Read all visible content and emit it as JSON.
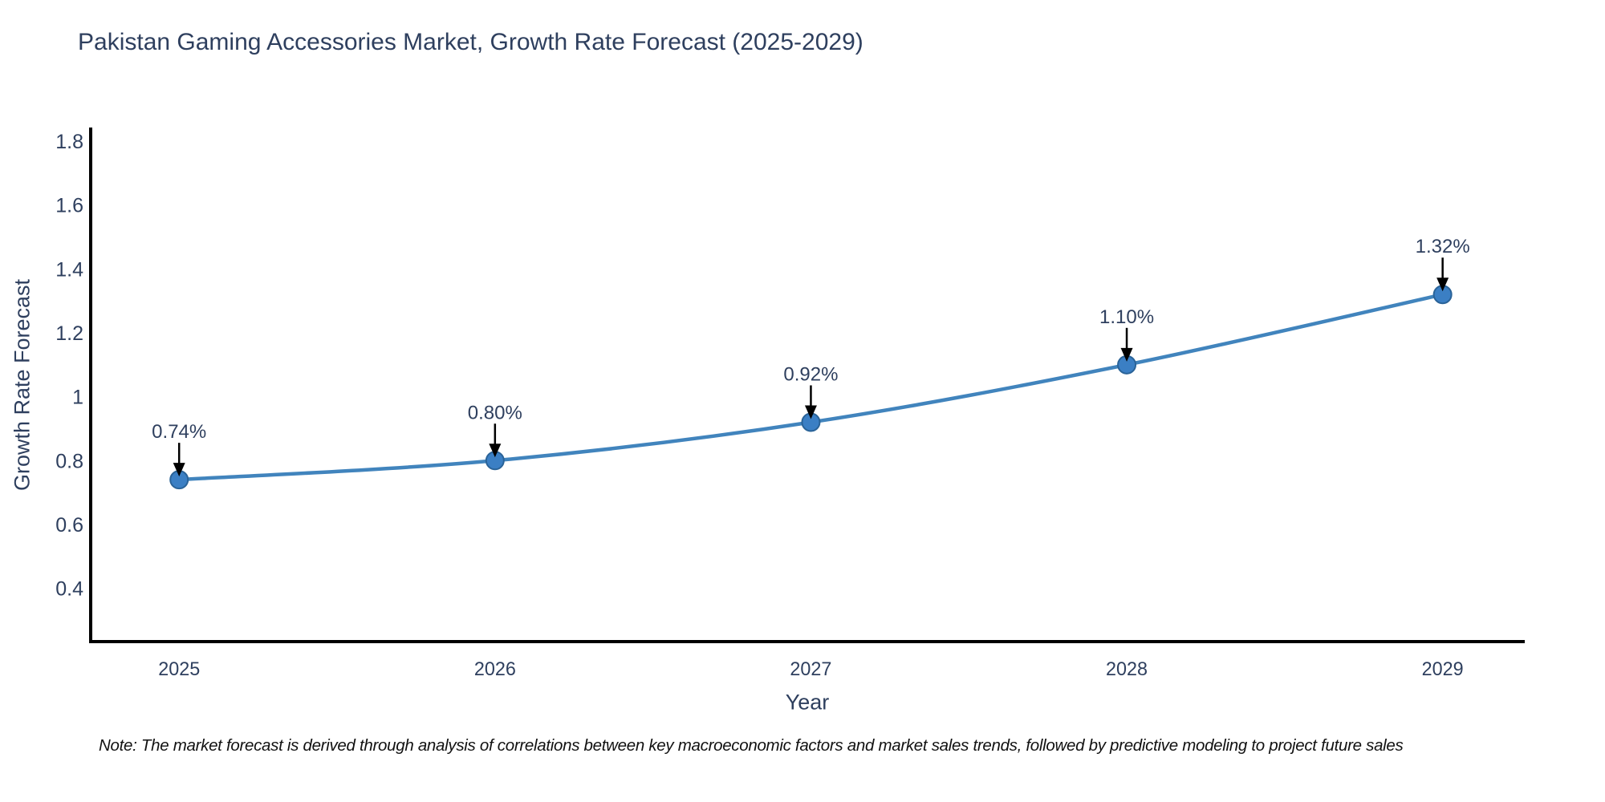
{
  "chart_data": {
    "type": "line",
    "title": "Pakistan Gaming Accessories Market, Growth Rate Forecast (2025-2029)",
    "xlabel": "Year",
    "ylabel": "Growth Rate Forecast",
    "x": [
      2025,
      2026,
      2027,
      2028,
      2029
    ],
    "series": [
      {
        "name": "Growth Rate Forecast",
        "values": [
          0.74,
          0.8,
          0.92,
          1.1,
          1.32
        ],
        "point_labels": [
          "0.74%",
          "0.80%",
          "0.92%",
          "1.10%",
          "1.32%"
        ]
      }
    ],
    "x_tick_labels": [
      "2025",
      "2026",
      "2027",
      "2028",
      "2029"
    ],
    "y_ticks": [
      0.4,
      0.6,
      0.8,
      1,
      1.2,
      1.4,
      1.6,
      1.8
    ],
    "y_tick_labels": [
      "0.4",
      "0.6",
      "0.8",
      "1",
      "1.2",
      "1.4",
      "1.6",
      "1.8"
    ],
    "x_range": [
      2024.72,
      2029.26
    ],
    "y_range": [
      0.233,
      1.843
    ],
    "grid": false,
    "legend": false,
    "line_shape": "spline",
    "colors": {
      "line": "#4184bd",
      "marker_fill": "#3b7fc4",
      "marker_edge": "#2a6398",
      "axis": "#000000",
      "tick_text": "#2e3f5e",
      "annotation_text": "#2e3f5e",
      "annotation_arrow": "#000000",
      "background": "#ffffff"
    }
  },
  "footnote": "Note: The market forecast is derived through analysis of correlations between key macroeconomic factors and market sales trends, followed by predictive modeling to project future sales"
}
